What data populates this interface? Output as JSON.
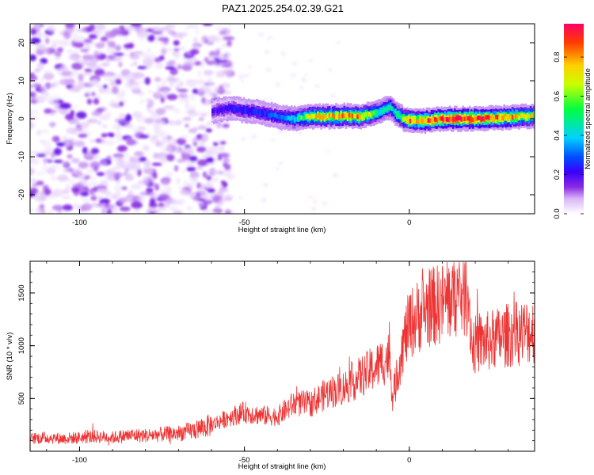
{
  "figure": {
    "title": "PAZ1.2025.254.02.39.G21"
  },
  "colors": {
    "snr_line": "#ee3333",
    "frame": "#000000",
    "background": "#ffffff",
    "colormap": [
      "#ffffff",
      "#d8b4f8",
      "#8a2be2",
      "#3a00ff",
      "#0050ff",
      "#00d2ff",
      "#00ff40",
      "#c8ff00",
      "#ffd000",
      "#ff3c00",
      "#ff0066"
    ]
  },
  "chart_data": [
    {
      "type": "heatmap",
      "title": "",
      "xlabel": "Height of straight line (km)",
      "ylabel": "Frequency (Hz)",
      "xlim": [
        -115,
        38
      ],
      "ylim": [
        -25,
        25
      ],
      "xticks": [
        -100,
        -50,
        0
      ],
      "yticks": [
        -20,
        -10,
        0,
        10,
        20
      ],
      "grid": false,
      "colorbar": {
        "label": "Normalized spectral amplitude",
        "range": [
          0,
          0.97
        ],
        "ticks": [
          "0.0",
          "0.2",
          "0.4",
          "0.6",
          "0.8"
        ]
      },
      "doppler_track": {
        "height_km": [
          -60,
          -55,
          -50,
          -45,
          -40,
          -35,
          -30,
          -25,
          -20,
          -15,
          -10,
          -8,
          -6,
          -4,
          -2,
          0,
          5,
          10,
          15,
          20,
          25,
          30,
          38
        ],
        "frequency_hz": [
          2.0,
          2.8,
          2.2,
          1.6,
          0.5,
          0.0,
          0.6,
          0.6,
          0.8,
          0.6,
          1.6,
          2.4,
          3.0,
          1.2,
          0.0,
          -0.5,
          -0.5,
          0.0,
          0.0,
          0.0,
          0.2,
          0.4,
          0.8
        ],
        "amplitude": [
          0.25,
          0.3,
          0.35,
          0.35,
          0.4,
          0.5,
          0.75,
          0.8,
          0.85,
          0.8,
          0.6,
          0.55,
          0.5,
          0.55,
          0.7,
          0.85,
          0.9,
          0.95,
          0.97,
          0.95,
          0.9,
          0.85,
          0.7
        ]
      },
      "noise_region_km": [
        -115,
        -60
      ]
    },
    {
      "type": "line",
      "title": "",
      "xlabel": "Height of straight line (km)",
      "ylabel": "SNR (10 * v/v)",
      "xlim": [
        -115,
        38
      ],
      "ylim": [
        0,
        1800
      ],
      "xticks": [
        -100,
        -50,
        0
      ],
      "yticks": [
        500,
        1000,
        1500
      ],
      "grid": false,
      "series": [
        {
          "x": [
            -115,
            -110,
            -105,
            -100,
            -95,
            -90,
            -85,
            -80,
            -75,
            -70,
            -65,
            -60,
            -55,
            -50,
            -45,
            -40,
            -35,
            -30,
            -25,
            -20,
            -15,
            -10,
            -6,
            -5,
            -2,
            0,
            5,
            10,
            15,
            18,
            19,
            25,
            30,
            38
          ],
          "values": [
            120,
            130,
            120,
            130,
            140,
            130,
            150,
            150,
            160,
            170,
            200,
            250,
            320,
            370,
            340,
            330,
            450,
            450,
            550,
            600,
            700,
            800,
            900,
            500,
            1000,
            1200,
            1350,
            1400,
            1500,
            1480,
            1000,
            1050,
            1100,
            1150
          ]
        }
      ]
    }
  ]
}
